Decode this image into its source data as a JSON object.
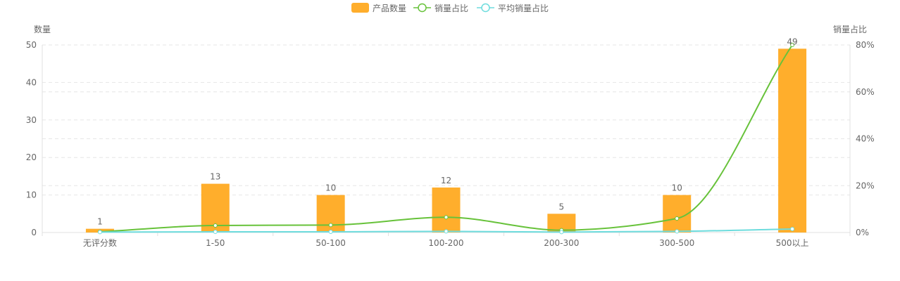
{
  "chart_data": {
    "type": "bar",
    "categories": [
      "无评分数",
      "1-50",
      "50-100",
      "100-200",
      "200-300",
      "300-500",
      "500以上"
    ],
    "legend": {
      "placement": "top-center",
      "items": [
        "产品数量",
        "销量占比",
        "平均销量占比"
      ]
    },
    "y_left": {
      "label": "数量",
      "range": [
        0,
        50
      ],
      "ticks": [
        "0",
        "10",
        "20",
        "30",
        "40",
        "50"
      ]
    },
    "y_right": {
      "label": "销量占比",
      "range": [
        0,
        80
      ],
      "ticks": [
        "0%",
        "20%",
        "40%",
        "60%",
        "80%"
      ]
    },
    "grid": true,
    "series": [
      {
        "name": "产品数量",
        "type": "bar",
        "axis": "left",
        "color": "#FFAE2C",
        "values": [
          1,
          13,
          10,
          12,
          5,
          10,
          49
        ],
        "labels": [
          "1",
          "13",
          "10",
          "12",
          "5",
          "10",
          "49"
        ]
      },
      {
        "name": "销量占比",
        "type": "line",
        "axis": "right",
        "smooth": true,
        "color": "#67C23A",
        "values": [
          0.3,
          3.0,
          3.2,
          6.5,
          1.0,
          6.0,
          80.0
        ]
      },
      {
        "name": "平均销量占比",
        "type": "line",
        "axis": "right",
        "smooth": true,
        "color": "#6DDCDD",
        "values": [
          0.2,
          0.3,
          0.3,
          0.5,
          0.2,
          0.5,
          1.5
        ]
      }
    ]
  }
}
